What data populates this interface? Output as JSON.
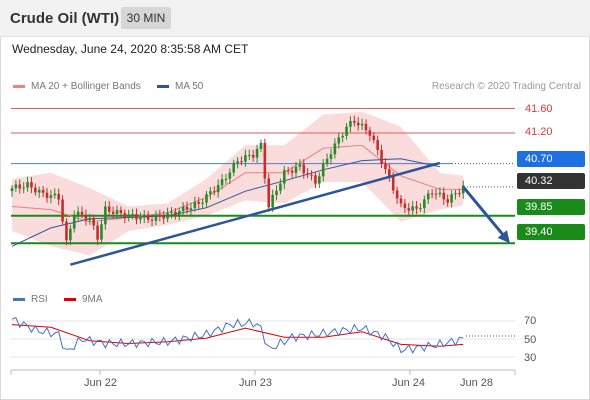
{
  "header": {
    "instrument": "Crude Oil (WTI)",
    "timeframe": "30 MIN"
  },
  "timestamp": "Wednesday, June 24, 2020 8:35:58 AM CET",
  "legend": [
    {
      "label": "MA 20 + Bollinger Bands",
      "color": "#f08080"
    },
    {
      "label": "MA 50",
      "color": "#2f5597"
    }
  ],
  "credit": "Research © 2020 Trading Central",
  "levels": [
    {
      "label": "41.60",
      "value": 41.6,
      "style": "resistance"
    },
    {
      "label": "41.20",
      "value": 41.2,
      "style": "resistance"
    },
    {
      "label": "40.70",
      "value": 40.7,
      "style": "pivot"
    },
    {
      "label": "40.32",
      "value": 40.32,
      "style": "last"
    },
    {
      "label": "39.85",
      "value": 39.85,
      "style": "support"
    },
    {
      "label": "39.40",
      "value": 39.4,
      "style": "support"
    }
  ],
  "rsi_legend": [
    {
      "label": "RSI",
      "color": "#4472c4"
    },
    {
      "label": "9MA",
      "color": "#e00000"
    }
  ],
  "rsi_ticks": [
    "70",
    "50",
    "30"
  ],
  "date_ticks": [
    "Jun 22",
    "Jun 23",
    "Jun 24",
    "Jun 28"
  ],
  "colors": {
    "resistance": "#e05a5a",
    "pivot": "#4a7fd4",
    "last": "#333333",
    "support": "#1a8a1a",
    "candle_up": "#2a8a2a",
    "candle_down": "#c03030",
    "band": "#f9d0d0",
    "ma50": "#2f5597",
    "trend": "#2f5597"
  },
  "chart_data": {
    "type": "candlestick",
    "instrument": "Crude Oil (WTI)",
    "timeframe": "30 MIN",
    "x_ticks": [
      "Jun 22",
      "Jun 23",
      "Jun 24",
      "Jun 28"
    ],
    "ylim": [
      38.94,
      41.94
    ],
    "key_levels": [
      41.6,
      41.2,
      40.7,
      40.32,
      39.85,
      39.4
    ],
    "close_path": [
      [
        0,
        40.3
      ],
      [
        4,
        40.35
      ],
      [
        8,
        40.2
      ],
      [
        12,
        40.15
      ],
      [
        14,
        39.4
      ],
      [
        16,
        39.9
      ],
      [
        20,
        39.8
      ],
      [
        22,
        39.5
      ],
      [
        24,
        39.95
      ],
      [
        30,
        39.85
      ],
      [
        36,
        39.8
      ],
      [
        42,
        39.9
      ],
      [
        48,
        40.05
      ],
      [
        54,
        40.4
      ],
      [
        58,
        40.75
      ],
      [
        62,
        40.85
      ],
      [
        64,
        41.0
      ],
      [
        66,
        40.0
      ],
      [
        70,
        40.55
      ],
      [
        74,
        40.65
      ],
      [
        78,
        40.4
      ],
      [
        82,
        40.9
      ],
      [
        86,
        41.3
      ],
      [
        88,
        41.4
      ],
      [
        92,
        41.2
      ],
      [
        96,
        40.6
      ],
      [
        100,
        40.0
      ],
      [
        104,
        39.95
      ],
      [
        108,
        40.25
      ],
      [
        112,
        40.1
      ],
      [
        116,
        40.32
      ]
    ],
    "ma50": [
      [
        0,
        39.35
      ],
      [
        10,
        39.65
      ],
      [
        20,
        39.8
      ],
      [
        30,
        39.82
      ],
      [
        40,
        39.85
      ],
      [
        50,
        39.98
      ],
      [
        60,
        40.25
      ],
      [
        70,
        40.42
      ],
      [
        80,
        40.6
      ],
      [
        90,
        40.75
      ],
      [
        100,
        40.78
      ],
      [
        110,
        40.65
      ]
    ],
    "ma20": [
      [
        0,
        40.0
      ],
      [
        10,
        39.95
      ],
      [
        20,
        39.75
      ],
      [
        30,
        39.82
      ],
      [
        40,
        39.9
      ],
      [
        50,
        40.15
      ],
      [
        60,
        40.55
      ],
      [
        70,
        40.55
      ],
      [
        80,
        40.95
      ],
      [
        90,
        41.0
      ],
      [
        100,
        40.5
      ],
      [
        110,
        40.28
      ],
      [
        116,
        40.28
      ]
    ],
    "bollinger_upper": [
      [
        0,
        40.45
      ],
      [
        10,
        40.55
      ],
      [
        20,
        40.3
      ],
      [
        30,
        40.0
      ],
      [
        40,
        40.05
      ],
      [
        50,
        40.45
      ],
      [
        60,
        41.0
      ],
      [
        70,
        41.0
      ],
      [
        80,
        41.5
      ],
      [
        90,
        41.55
      ],
      [
        100,
        41.3
      ],
      [
        110,
        40.55
      ],
      [
        116,
        40.5
      ]
    ],
    "bollinger_lower": [
      [
        0,
        39.6
      ],
      [
        10,
        39.35
      ],
      [
        20,
        39.2
      ],
      [
        30,
        39.6
      ],
      [
        40,
        39.7
      ],
      [
        50,
        39.85
      ],
      [
        60,
        40.1
      ],
      [
        70,
        40.05
      ],
      [
        80,
        40.4
      ],
      [
        90,
        40.4
      ],
      [
        100,
        39.75
      ],
      [
        110,
        39.95
      ],
      [
        116,
        40.02
      ]
    ],
    "trendline": [
      [
        15,
        39.05
      ],
      [
        110,
        40.71
      ]
    ],
    "projection": [
      [
        116,
        40.32
      ],
      [
        128,
        39.4
      ]
    ],
    "rsi": {
      "ticks": [
        70,
        50,
        30
      ],
      "rsi_path": [
        [
          0,
          72
        ],
        [
          6,
          60
        ],
        [
          12,
          55
        ],
        [
          14,
          35
        ],
        [
          18,
          50
        ],
        [
          24,
          45
        ],
        [
          30,
          45
        ],
        [
          40,
          47
        ],
        [
          50,
          55
        ],
        [
          56,
          66
        ],
        [
          62,
          68
        ],
        [
          64,
          62
        ],
        [
          66,
          38
        ],
        [
          72,
          52
        ],
        [
          80,
          56
        ],
        [
          86,
          60
        ],
        [
          90,
          62
        ],
        [
          96,
          52
        ],
        [
          100,
          38
        ],
        [
          104,
          40
        ],
        [
          110,
          44
        ],
        [
          116,
          50
        ]
      ],
      "ma9_path": [
        [
          0,
          66
        ],
        [
          10,
          63
        ],
        [
          20,
          48
        ],
        [
          30,
          45
        ],
        [
          40,
          47
        ],
        [
          50,
          51
        ],
        [
          60,
          62
        ],
        [
          70,
          52
        ],
        [
          80,
          52
        ],
        [
          90,
          58
        ],
        [
          100,
          44
        ],
        [
          110,
          42
        ],
        [
          116,
          44
        ]
      ]
    }
  }
}
